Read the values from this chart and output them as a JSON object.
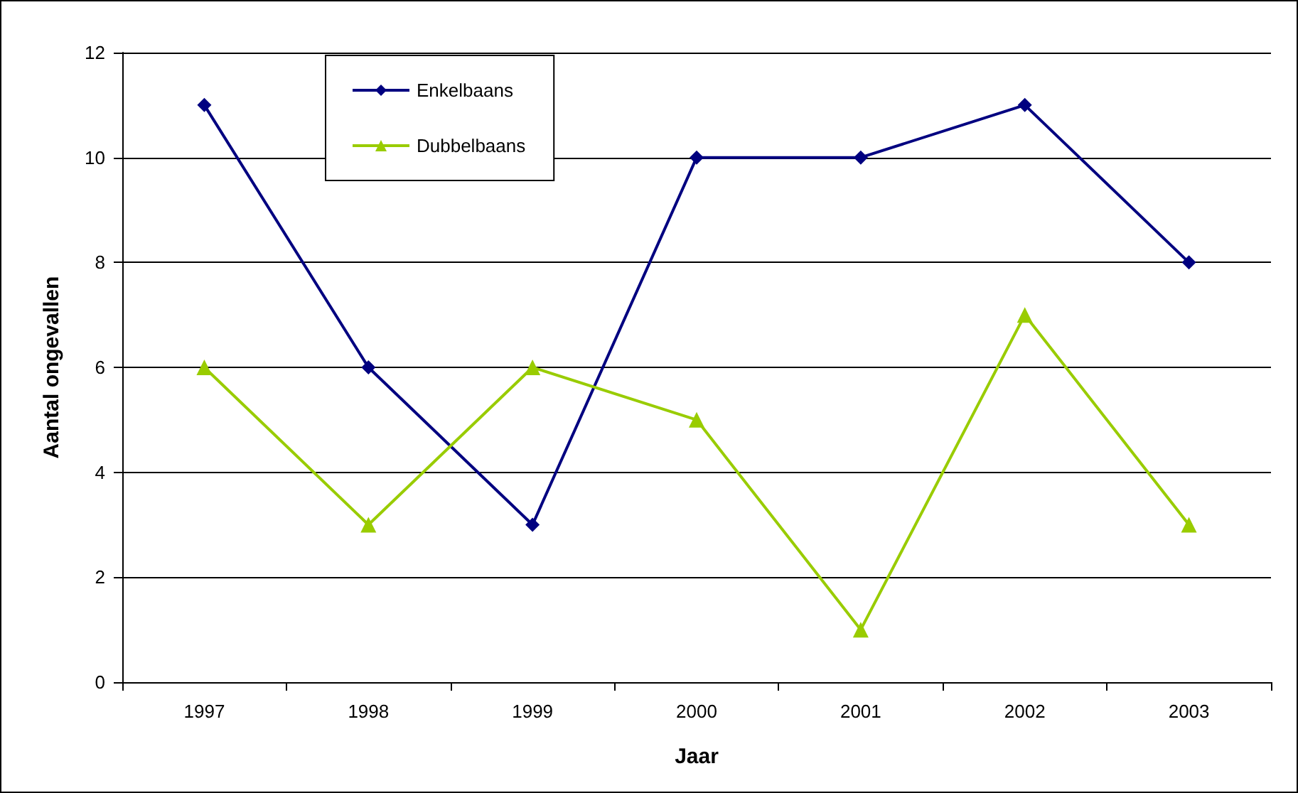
{
  "chart_data": {
    "type": "line",
    "xlabel": "Jaar",
    "ylabel": "Aantal ongevallen",
    "categories": [
      "1997",
      "1998",
      "1999",
      "2000",
      "2001",
      "2002",
      "2003"
    ],
    "series": [
      {
        "name": "Enkelbaans",
        "color": "#000080",
        "marker": "diamond",
        "values": [
          11,
          6,
          3,
          10,
          10,
          11,
          8
        ]
      },
      {
        "name": "Dubbelbaans",
        "color": "#99cc00",
        "marker": "triangle",
        "values": [
          6,
          3,
          6,
          5,
          1,
          7,
          3
        ]
      }
    ],
    "ylim": [
      0,
      12
    ],
    "yticks": [
      0,
      2,
      4,
      6,
      8,
      10,
      12
    ],
    "grid": "y",
    "legend": "top left",
    "line_style": "solid"
  }
}
